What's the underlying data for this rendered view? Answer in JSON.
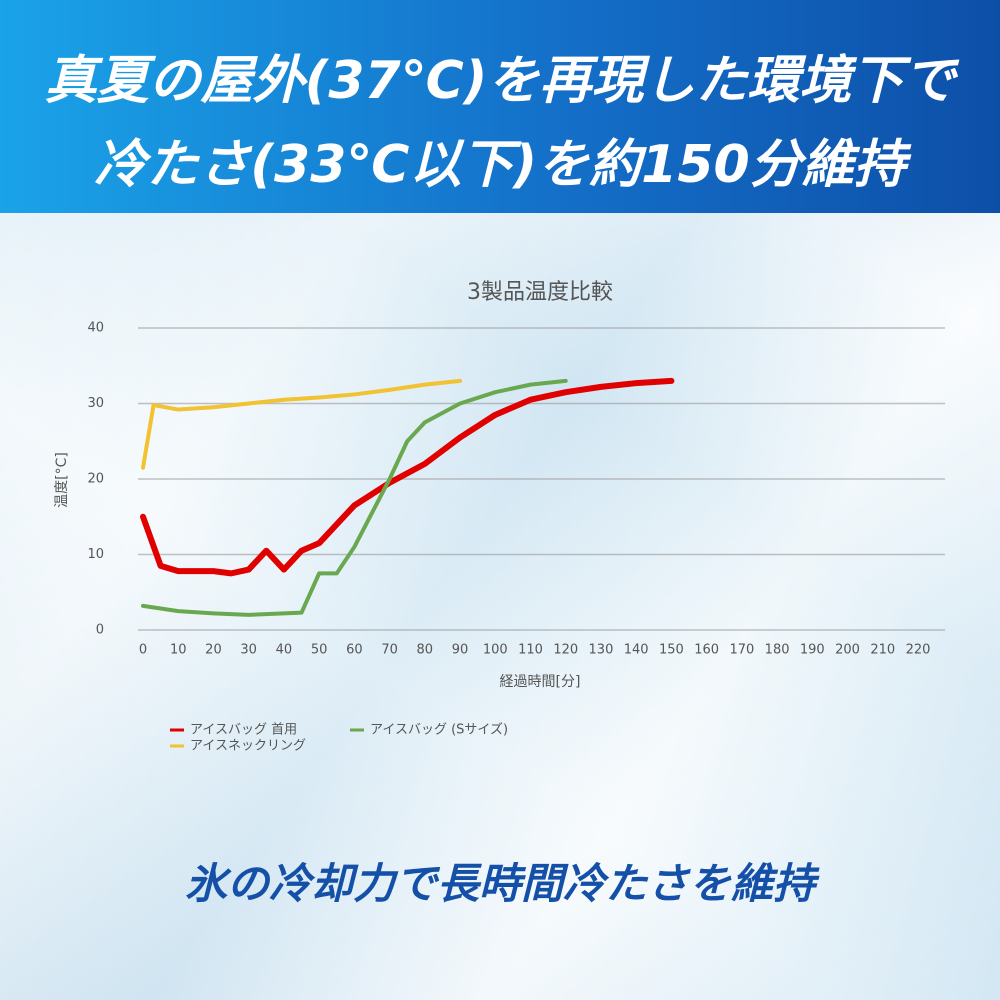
{
  "header": {
    "lines": [
      "真夏の屋外(37℃)を再現した環境下で",
      "冷たさ(33℃以下)を約150分維持"
    ]
  },
  "footer": {
    "text": "氷の冷却力で長時間冷たさを維持"
  },
  "chart_data": {
    "type": "line",
    "title": "3製品温度比較",
    "x_label": "経過時間[分]",
    "y_label": "温度[°C]",
    "xlim": [
      0,
      220
    ],
    "xticks": [
      0,
      10,
      20,
      30,
      40,
      50,
      60,
      70,
      80,
      90,
      100,
      110,
      120,
      130,
      140,
      150,
      160,
      170,
      180,
      190,
      200,
      210,
      220
    ],
    "ylim": [
      0,
      40
    ],
    "yticks": [
      0,
      10,
      20,
      30,
      40
    ],
    "grid": true,
    "series": [
      {
        "name": "アイスバッグ 首用",
        "color": "#e00000",
        "width": 6,
        "x": [
          0,
          5,
          10,
          20,
          25,
          30,
          35,
          40,
          45,
          50,
          55,
          60,
          70,
          80,
          90,
          100,
          110,
          120,
          130,
          140,
          150
        ],
        "values": [
          15,
          8.5,
          7.8,
          7.8,
          7.5,
          8,
          10.5,
          8,
          10.5,
          11.5,
          14,
          16.5,
          19.5,
          22,
          25.5,
          28.5,
          30.5,
          31.5,
          32.2,
          32.7,
          33
        ]
      },
      {
        "name": "アイスバッグ (Sサイズ)",
        "color": "#6aa84f",
        "width": 4,
        "x": [
          0,
          10,
          20,
          30,
          40,
          45,
          50,
          55,
          60,
          65,
          70,
          75,
          80,
          90,
          100,
          110,
          120
        ],
        "values": [
          3.2,
          2.5,
          2.2,
          2,
          2.2,
          2.3,
          7.5,
          7.5,
          11,
          15.5,
          20,
          25,
          27.5,
          30,
          31.5,
          32.5,
          33
        ]
      },
      {
        "name": "アイスネックリング",
        "color": "#f1c232",
        "width": 4,
        "x": [
          0,
          3,
          10,
          20,
          30,
          40,
          50,
          60,
          70,
          80,
          90
        ],
        "values": [
          21.5,
          29.8,
          29.2,
          29.5,
          30,
          30.5,
          30.8,
          31.2,
          31.8,
          32.5,
          33
        ]
      }
    ]
  }
}
